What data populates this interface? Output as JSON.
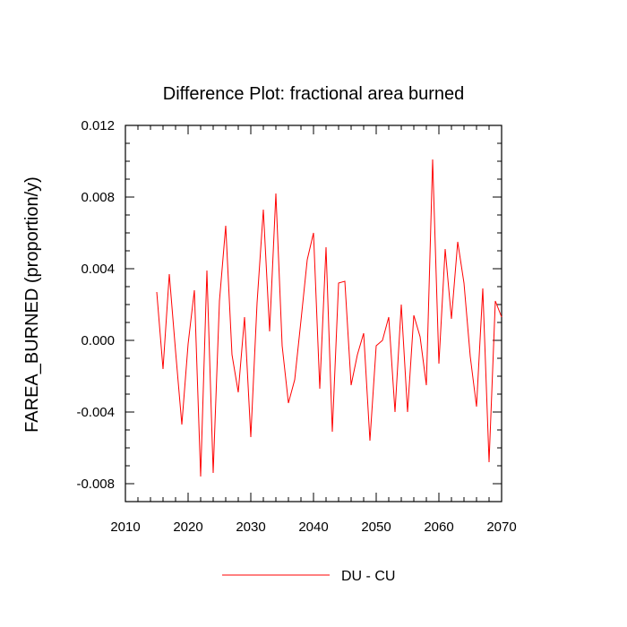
{
  "chart_data": {
    "type": "line",
    "title": "Difference Plot: fractional area burned",
    "xlabel": "",
    "ylabel": "FAREA_BURNED  (proportion/y)",
    "xlim": [
      2010,
      2070
    ],
    "ylim": [
      -0.009,
      0.012
    ],
    "x_ticks": [
      2010,
      2020,
      2030,
      2040,
      2050,
      2060,
      2070
    ],
    "x_tick_labels": [
      "2010",
      "2020",
      "2030",
      "2040",
      "2050",
      "2060",
      "2070"
    ],
    "y_ticks": [
      -0.008,
      -0.004,
      0.0,
      0.004,
      0.008,
      0.012
    ],
    "y_tick_labels": [
      "-0.008",
      "-0.004",
      "0.000",
      "0.004",
      "0.008",
      "0.012"
    ],
    "legend_position": "bottom-center",
    "series": [
      {
        "name": "DU - CU",
        "color": "#ff0000",
        "x": [
          2015,
          2016,
          2017,
          2018,
          2019,
          2020,
          2021,
          2022,
          2023,
          2024,
          2025,
          2026,
          2027,
          2028,
          2029,
          2030,
          2031,
          2032,
          2033,
          2034,
          2035,
          2036,
          2037,
          2038,
          2039,
          2040,
          2041,
          2042,
          2043,
          2044,
          2045,
          2046,
          2047,
          2048,
          2049,
          2050,
          2051,
          2052,
          2053,
          2054,
          2055,
          2056,
          2057,
          2058,
          2059,
          2060,
          2061,
          2062,
          2063,
          2064,
          2065,
          2066,
          2067,
          2068,
          2069,
          2070
        ],
        "values": [
          0.0027,
          -0.0016,
          0.0037,
          -0.0006,
          -0.0047,
          -0.0002,
          0.0028,
          -0.0076,
          0.0039,
          -0.0074,
          0.0022,
          0.0064,
          -0.0008,
          -0.0029,
          0.0013,
          -0.0054,
          0.0021,
          0.0073,
          0.0005,
          0.0082,
          -0.0003,
          -0.0035,
          -0.0022,
          0.0011,
          0.0045,
          0.006,
          -0.0027,
          0.0052,
          -0.0051,
          0.0032,
          0.0033,
          -0.0025,
          -0.0008,
          0.0004,
          -0.0056,
          -0.0003,
          0.0,
          0.0013,
          -0.004,
          0.002,
          -0.004,
          0.0014,
          0.0002,
          -0.0025,
          0.0101,
          -0.0013,
          0.0051,
          0.0012,
          0.0055,
          0.0032,
          -0.0009,
          -0.0037,
          0.0029,
          -0.0068,
          0.0022,
          0.0013
        ]
      }
    ]
  }
}
